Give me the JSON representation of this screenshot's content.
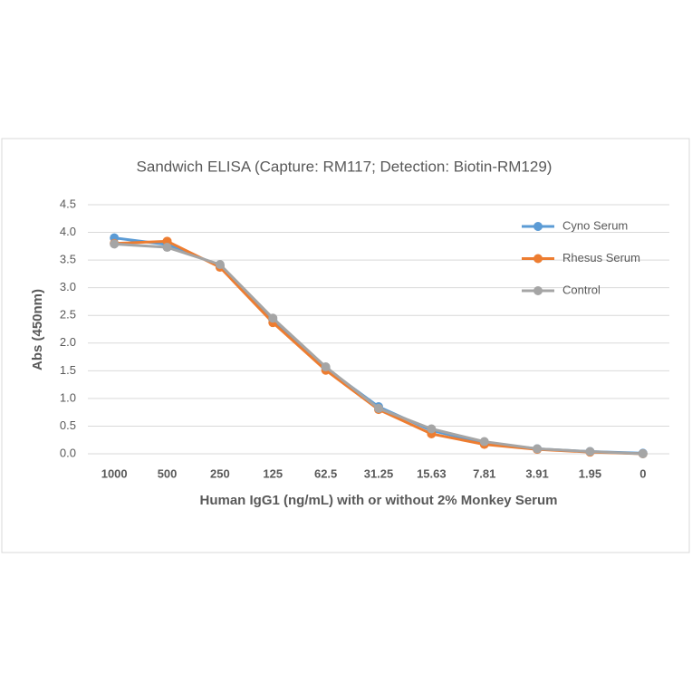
{
  "chart_data": {
    "type": "line",
    "title": "Sandwich ELISA (Capture:  RM117; Detection: Biotin-RM129)",
    "x_label": "Human IgG1 (ng/mL) with or without 2% Monkey Serum",
    "y_label": "Abs (450nm)",
    "categories": [
      "1000",
      "500",
      "250",
      "125",
      "62.5",
      "31.25",
      "15.63",
      "7.81",
      "3.91",
      "1.95",
      "0"
    ],
    "series": [
      {
        "name": "Cyno Serum",
        "color": "#5b9bd5",
        "values": [
          3.9,
          3.78,
          3.4,
          2.42,
          1.55,
          0.85,
          0.42,
          0.2,
          0.09,
          0.04,
          0.01
        ]
      },
      {
        "name": "Rhesus Serum",
        "color": "#ed7d31",
        "values": [
          3.8,
          3.84,
          3.37,
          2.37,
          1.51,
          0.8,
          0.36,
          0.17,
          0.08,
          0.03,
          0.0
        ]
      },
      {
        "name": "Control",
        "color": "#a5a5a5",
        "values": [
          3.79,
          3.73,
          3.42,
          2.45,
          1.57,
          0.82,
          0.45,
          0.22,
          0.09,
          0.04,
          0.0
        ]
      }
    ],
    "ylim": [
      0,
      4.5
    ],
    "yticks": [
      {
        "value": 0,
        "label": "0.0"
      },
      {
        "value": 0.5,
        "label": "0.5"
      },
      {
        "value": 1,
        "label": "1.0"
      },
      {
        "value": 1.5,
        "label": "1.5"
      },
      {
        "value": 2,
        "label": "2.0"
      },
      {
        "value": 2.5,
        "label": "2.5"
      },
      {
        "value": 3,
        "label": "3.0"
      },
      {
        "value": 3.5,
        "label": "3.5"
      },
      {
        "value": 4,
        "label": "4.0"
      },
      {
        "value": 4.5,
        "label": "4.5"
      }
    ],
    "grid": true,
    "legend": "right"
  }
}
